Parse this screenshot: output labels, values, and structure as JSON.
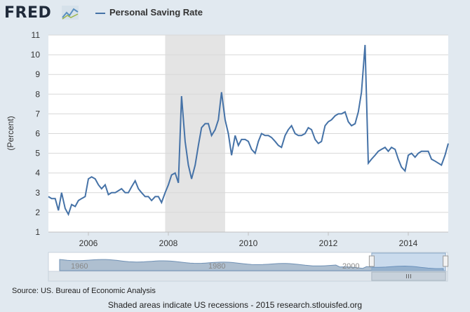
{
  "header": {
    "brand": "FRED",
    "brand_icon": "fred-chart-icon"
  },
  "chart_data": {
    "type": "line",
    "title": "",
    "xlabel": "",
    "ylabel": "(Percent)",
    "ylim": [
      1,
      11
    ],
    "yticks": [
      1,
      2,
      3,
      4,
      5,
      6,
      7,
      8,
      9,
      10,
      11
    ],
    "xticks": [
      {
        "value": 2006,
        "label": "2006"
      },
      {
        "value": 2008,
        "label": "2008"
      },
      {
        "value": 2010,
        "label": "2010"
      },
      {
        "value": 2012,
        "label": "2012"
      },
      {
        "value": 2014,
        "label": "2014"
      }
    ],
    "xlim": [
      2005.0,
      2015.0
    ],
    "grid": true,
    "legend": "top-left",
    "recession": {
      "start": 2007.92,
      "end": 2009.42,
      "color": "#e4e4e4"
    },
    "series": [
      {
        "name": "Personal Saving Rate",
        "color": "#4572a7",
        "x": [
          2005.0,
          2005.08,
          2005.17,
          2005.25,
          2005.33,
          2005.42,
          2005.5,
          2005.58,
          2005.67,
          2005.75,
          2005.83,
          2005.92,
          2006.0,
          2006.08,
          2006.17,
          2006.25,
          2006.33,
          2006.42,
          2006.5,
          2006.58,
          2006.67,
          2006.75,
          2006.83,
          2006.92,
          2007.0,
          2007.08,
          2007.17,
          2007.25,
          2007.33,
          2007.42,
          2007.5,
          2007.58,
          2007.67,
          2007.75,
          2007.83,
          2007.92,
          2008.0,
          2008.08,
          2008.17,
          2008.25,
          2008.33,
          2008.42,
          2008.5,
          2008.58,
          2008.67,
          2008.75,
          2008.83,
          2008.92,
          2009.0,
          2009.08,
          2009.17,
          2009.25,
          2009.33,
          2009.42,
          2009.5,
          2009.58,
          2009.67,
          2009.75,
          2009.83,
          2009.92,
          2010.0,
          2010.08,
          2010.17,
          2010.25,
          2010.33,
          2010.42,
          2010.5,
          2010.58,
          2010.67,
          2010.75,
          2010.83,
          2010.92,
          2011.0,
          2011.08,
          2011.17,
          2011.25,
          2011.33,
          2011.42,
          2011.5,
          2011.58,
          2011.67,
          2011.75,
          2011.83,
          2011.92,
          2012.0,
          2012.08,
          2012.17,
          2012.25,
          2012.33,
          2012.42,
          2012.5,
          2012.58,
          2012.67,
          2012.75,
          2012.83,
          2012.92,
          2013.0,
          2013.08,
          2013.17,
          2013.25,
          2013.33,
          2013.42,
          2013.5,
          2013.58,
          2013.67,
          2013.75,
          2013.83,
          2013.92,
          2014.0,
          2014.08,
          2014.17,
          2014.25,
          2014.33,
          2014.42,
          2014.5,
          2014.58,
          2014.67,
          2014.75,
          2014.83,
          2014.92,
          2015.0
        ],
        "values": [
          2.8,
          2.7,
          2.7,
          2.1,
          3.0,
          2.2,
          1.9,
          2.4,
          2.3,
          2.6,
          2.7,
          2.8,
          3.7,
          3.8,
          3.7,
          3.4,
          3.2,
          3.4,
          2.9,
          3.0,
          3.0,
          3.1,
          3.2,
          3.0,
          3.0,
          3.3,
          3.6,
          3.2,
          3.0,
          2.8,
          2.8,
          2.6,
          2.8,
          2.8,
          2.5,
          3.0,
          3.4,
          3.9,
          4.0,
          3.5,
          7.9,
          5.6,
          4.4,
          3.7,
          4.4,
          5.4,
          6.3,
          6.5,
          6.5,
          5.9,
          6.2,
          6.7,
          8.1,
          6.7,
          6.0,
          4.9,
          5.9,
          5.4,
          5.7,
          5.7,
          5.6,
          5.2,
          5.0,
          5.6,
          6.0,
          5.9,
          5.9,
          5.8,
          5.6,
          5.4,
          5.3,
          5.9,
          6.2,
          6.4,
          6.0,
          5.9,
          5.9,
          6.0,
          6.3,
          6.2,
          5.7,
          5.5,
          5.6,
          6.4,
          6.6,
          6.7,
          6.9,
          7.0,
          7.0,
          7.1,
          6.6,
          6.4,
          6.5,
          7.1,
          8.1,
          10.5,
          4.5,
          4.7,
          4.9,
          5.1,
          5.2,
          5.3,
          5.1,
          5.3,
          5.2,
          4.7,
          4.3,
          4.1,
          4.9,
          5.0,
          4.8,
          5.0,
          5.1,
          5.1,
          5.1,
          4.7,
          4.6,
          4.5,
          4.4,
          4.9,
          5.5
        ]
      }
    ]
  },
  "navigator": {
    "labels": [
      "1960",
      "1980",
      "2000"
    ],
    "scroll_icon": "scroll-grip-icon",
    "selection": [
      0.81,
      0.995
    ]
  },
  "footer": {
    "source": "Source: US. Bureau of Economic Analysis",
    "note": "Shaded areas indicate US recessions - 2015 research.stlouisfed.org"
  }
}
